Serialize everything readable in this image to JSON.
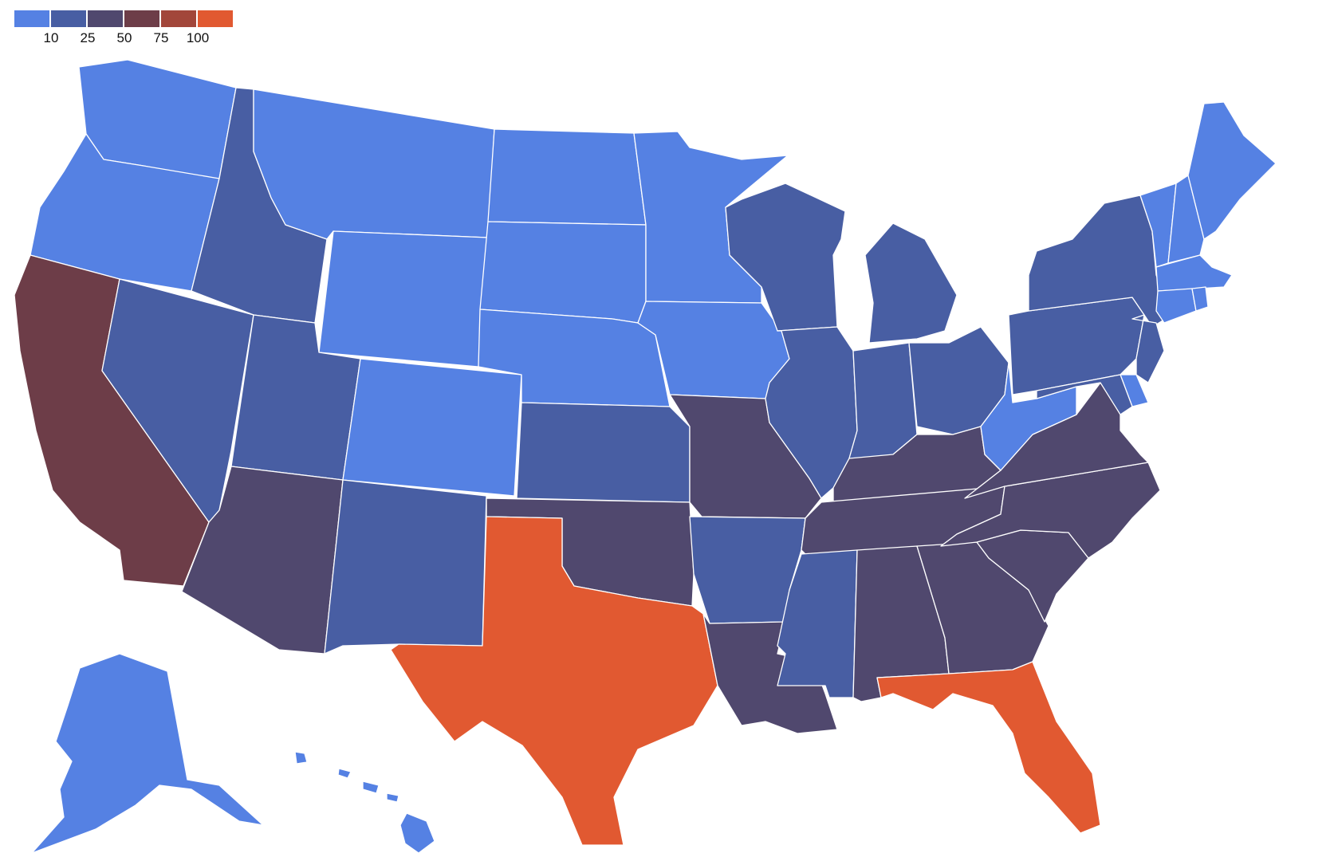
{
  "legend": {
    "bins": [
      {
        "color": "#5581e3",
        "range": "0-10"
      },
      {
        "color": "#485ea3",
        "range": "10-25"
      },
      {
        "color": "#50486e",
        "range": "25-50"
      },
      {
        "color": "#6d3d48",
        "range": "50-75"
      },
      {
        "color": "#a2463a",
        "range": "75-100"
      },
      {
        "color": "#e15931",
        "range": "100+"
      }
    ],
    "tick_labels": [
      "10",
      "25",
      "50",
      "75",
      "100"
    ]
  },
  "states": {
    "WA": {
      "bin": 0
    },
    "OR": {
      "bin": 0
    },
    "MT": {
      "bin": 0
    },
    "ND": {
      "bin": 0
    },
    "SD": {
      "bin": 0
    },
    "WY": {
      "bin": 0
    },
    "NE": {
      "bin": 0
    },
    "CO": {
      "bin": 0
    },
    "MN": {
      "bin": 0
    },
    "IA": {
      "bin": 0
    },
    "WV": {
      "bin": 0
    },
    "DE": {
      "bin": 0
    },
    "ME": {
      "bin": 0
    },
    "VT": {
      "bin": 0
    },
    "NH": {
      "bin": 0
    },
    "MA": {
      "bin": 0
    },
    "CT": {
      "bin": 0
    },
    "RI": {
      "bin": 0
    },
    "AK": {
      "bin": 0
    },
    "HI": {
      "bin": 0
    },
    "ID": {
      "bin": 1
    },
    "NV": {
      "bin": 1
    },
    "UT": {
      "bin": 1
    },
    "NM": {
      "bin": 1
    },
    "KS": {
      "bin": 1
    },
    "WI": {
      "bin": 1
    },
    "MI": {
      "bin": 1
    },
    "IL": {
      "bin": 1
    },
    "IN": {
      "bin": 1
    },
    "OH": {
      "bin": 1
    },
    "PA": {
      "bin": 1
    },
    "NY": {
      "bin": 1
    },
    "NJ": {
      "bin": 1
    },
    "MD": {
      "bin": 1
    },
    "AR": {
      "bin": 1
    },
    "MS": {
      "bin": 1
    },
    "AZ": {
      "bin": 2
    },
    "OK": {
      "bin": 2
    },
    "MO": {
      "bin": 2
    },
    "LA": {
      "bin": 2
    },
    "AL": {
      "bin": 2
    },
    "GA": {
      "bin": 2
    },
    "SC": {
      "bin": 2
    },
    "NC": {
      "bin": 2
    },
    "TN": {
      "bin": 2
    },
    "KY": {
      "bin": 2
    },
    "VA": {
      "bin": 2
    },
    "CA": {
      "bin": 3
    },
    "TX": {
      "bin": 5
    },
    "FL": {
      "bin": 5
    }
  }
}
